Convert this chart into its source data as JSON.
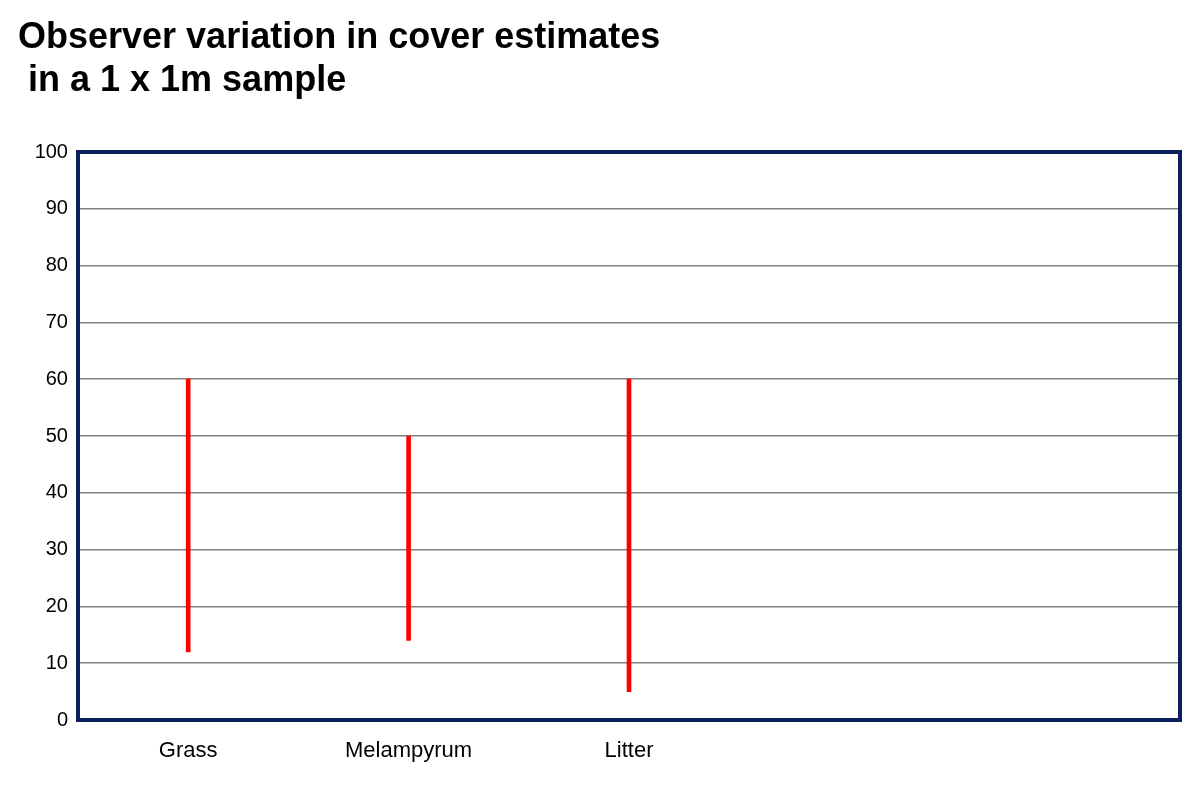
{
  "chart_data": {
    "type": "bar",
    "title": "Observer variation in cover estimates\n in a 1 x 1m sample",
    "categories": [
      "Grass",
      "Melampyrum",
      "Litter",
      null,
      null
    ],
    "values": [
      48,
      36,
      55,
      null,
      null
    ],
    "base": [
      12,
      14,
      5,
      null,
      null
    ],
    "color": "#ff0000",
    "ylim": [
      0,
      100
    ],
    "yticks": [
      0,
      10,
      20,
      30,
      40,
      50,
      60,
      70,
      80,
      90,
      100
    ],
    "grid": "y"
  }
}
